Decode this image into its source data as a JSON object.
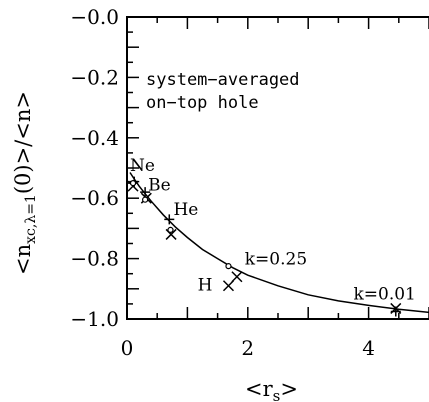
{
  "chart_data": {
    "type": "scatter",
    "title": "",
    "xlabel": "<r",
    "xlabel_sub": "s",
    "xlabel_close": ">",
    "ylabel": "<n",
    "ylabel_sub": "xc,λ=1",
    "ylabel_rest": "(0)>/<n>",
    "xlim": [
      0,
      5
    ],
    "ylim": [
      -1.0,
      0.0
    ],
    "x_ticks": [
      0,
      2,
      4
    ],
    "y_ticks": [
      -0.0,
      -0.2,
      -0.4,
      -0.6,
      -0.8,
      -1.0
    ],
    "x_tick_labels": [
      "0",
      "2",
      "4"
    ],
    "y_tick_labels": [
      "−0.0",
      "−0.2",
      "−0.4",
      "−0.6",
      "−0.8",
      "−1.0"
    ],
    "annotation_lines": [
      "system−averaged",
      "on−top hole"
    ],
    "curve": {
      "x": [
        0.05,
        0.1,
        0.2,
        0.3,
        0.4,
        0.6,
        0.8,
        1.0,
        1.25,
        1.5,
        1.75,
        2.0,
        2.5,
        3.0,
        3.5,
        4.0,
        4.5,
        5.0
      ],
      "y": [
        -0.515,
        -0.53,
        -0.56,
        -0.585,
        -0.61,
        -0.655,
        -0.695,
        -0.73,
        -0.77,
        -0.8,
        -0.83,
        -0.855,
        -0.89,
        -0.92,
        -0.94,
        -0.955,
        -0.968,
        -0.978
      ]
    },
    "series": [
      {
        "marker": "plus",
        "points": [
          {
            "x": 0.12,
            "y": -0.545
          },
          {
            "x": 0.3,
            "y": -0.58
          },
          {
            "x": 0.7,
            "y": -0.67
          },
          {
            "x": 4.45,
            "y": -0.975
          }
        ]
      },
      {
        "marker": "cross",
        "points": [
          {
            "x": 0.1,
            "y": -0.56
          },
          {
            "x": 0.32,
            "y": -0.6
          },
          {
            "x": 0.73,
            "y": -0.72
          },
          {
            "x": 1.68,
            "y": -0.89
          },
          {
            "x": 1.82,
            "y": -0.86
          },
          {
            "x": 4.45,
            "y": -0.965
          }
        ]
      },
      {
        "marker": "circle",
        "points": [
          {
            "x": 0.1,
            "y": -0.55
          },
          {
            "x": 0.3,
            "y": -0.605
          },
          {
            "x": 0.72,
            "y": -0.705
          },
          {
            "x": 1.68,
            "y": -0.825
          }
        ]
      }
    ],
    "point_labels": [
      {
        "text": "Ne",
        "x": 0.0,
        "y": -0.51
      },
      {
        "text": "Be",
        "x": 0.3,
        "y": -0.575
      },
      {
        "text": "He",
        "x": 0.72,
        "y": -0.655
      },
      {
        "text": "k=0.25",
        "x": 1.9,
        "y": -0.82
      },
      {
        "text": "H",
        "x": 1.12,
        "y": -0.905
      },
      {
        "text": "k=0.01",
        "x": 3.7,
        "y": -0.935
      }
    ]
  }
}
